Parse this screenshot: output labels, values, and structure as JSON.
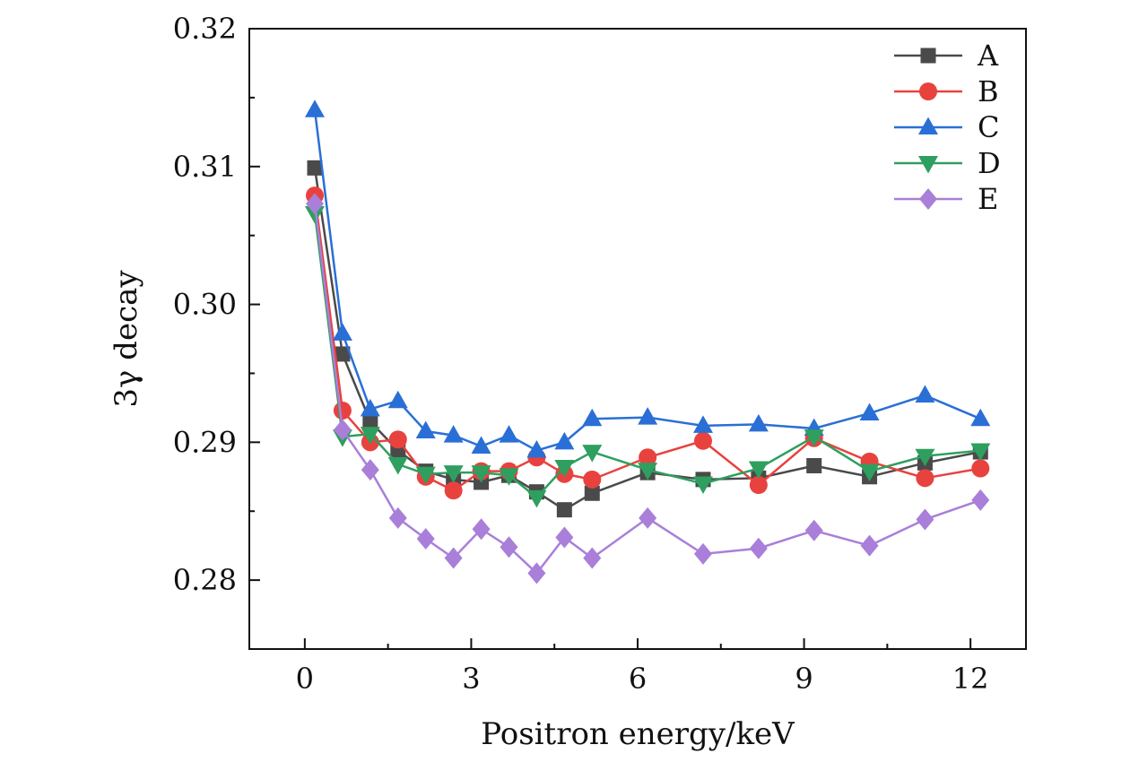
{
  "chart_data": {
    "type": "line",
    "title": "",
    "xlabel": "Positron energy/keV",
    "ylabel": "3γ decay",
    "xlim": [
      -1,
      13
    ],
    "ylim": [
      0.275,
      0.32
    ],
    "xticks": [
      0,
      3,
      6,
      9,
      12
    ],
    "xtick_labels": [
      "0",
      "3",
      "6",
      "9",
      "12"
    ],
    "yticks": [
      0.28,
      0.29,
      0.3,
      0.31,
      0.32
    ],
    "ytick_labels": [
      "0.28",
      "0.29",
      "0.30",
      "0.31",
      "0.32"
    ],
    "grid": false,
    "legend_position": "top-right",
    "x": [
      0.18,
      0.68,
      1.18,
      1.68,
      2.18,
      2.68,
      3.18,
      3.68,
      4.18,
      4.68,
      5.18,
      6.18,
      7.18,
      8.18,
      9.18,
      10.18,
      11.18,
      12.18
    ],
    "series": [
      {
        "name": "A",
        "color": "#4a4a4a",
        "marker": "square",
        "values": [
          0.3099,
          0.2964,
          0.2915,
          0.2894,
          0.2879,
          0.2873,
          0.2871,
          0.2876,
          0.2864,
          0.2851,
          0.2863,
          0.2878,
          0.2873,
          0.2874,
          0.2883,
          0.2875,
          0.2885,
          0.2893
        ]
      },
      {
        "name": "B",
        "color": "#e8423f",
        "marker": "circle",
        "values": [
          0.3079,
          0.2923,
          0.29,
          0.2902,
          0.2875,
          0.2865,
          0.2879,
          0.2879,
          0.2889,
          0.2877,
          0.2873,
          0.2889,
          0.2901,
          0.2869,
          0.2903,
          0.2886,
          0.2874,
          0.2881
        ]
      },
      {
        "name": "C",
        "color": "#2a6fd6",
        "marker": "triangle-up",
        "values": [
          0.3141,
          0.2979,
          0.2924,
          0.293,
          0.2908,
          0.2905,
          0.2897,
          0.2905,
          0.2894,
          0.29,
          0.2917,
          0.2918,
          0.2912,
          0.2913,
          0.291,
          0.2921,
          0.2934,
          0.2917
        ]
      },
      {
        "name": "D",
        "color": "#2e9f5e",
        "marker": "triangle-down",
        "values": [
          0.3066,
          0.2904,
          0.2906,
          0.2884,
          0.2877,
          0.2878,
          0.2878,
          0.2876,
          0.286,
          0.2882,
          0.2893,
          0.288,
          0.287,
          0.2881,
          0.2904,
          0.2879,
          0.289,
          0.2894
        ]
      },
      {
        "name": "E",
        "color": "#a97fd9",
        "marker": "diamond",
        "values": [
          0.3073,
          0.2909,
          0.288,
          0.2845,
          0.283,
          0.2816,
          0.2837,
          0.2824,
          0.2805,
          0.2831,
          0.2816,
          0.2845,
          0.2819,
          0.2823,
          0.2836,
          0.2825,
          0.2844,
          0.2858
        ]
      }
    ]
  }
}
